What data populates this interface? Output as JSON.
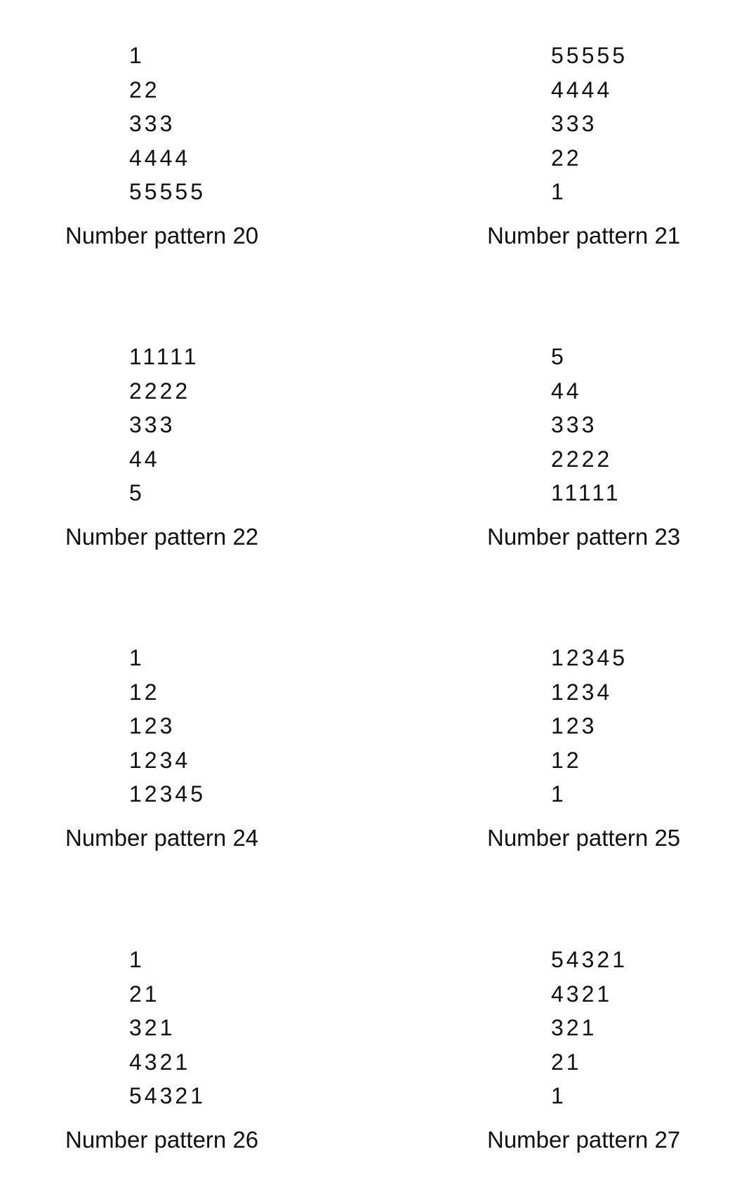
{
  "patterns": [
    {
      "rows": [
        "1",
        "22",
        "333",
        "4444",
        "55555"
      ],
      "caption": "Number pattern 20"
    },
    {
      "rows": [
        "55555",
        "4444",
        "333",
        "22",
        "1"
      ],
      "caption": "Number pattern 21"
    },
    {
      "rows": [
        "11111",
        "2222",
        "333",
        "44",
        "5"
      ],
      "caption": "Number pattern 22"
    },
    {
      "rows": [
        "5",
        "44",
        "333",
        "2222",
        "11111"
      ],
      "caption": "Number pattern 23"
    },
    {
      "rows": [
        "1",
        "12",
        "123",
        "1234",
        "12345"
      ],
      "caption": "Number pattern 24"
    },
    {
      "rows": [
        "12345",
        "1234",
        "123",
        "12",
        "1"
      ],
      "caption": "Number pattern 25"
    },
    {
      "rows": [
        "1",
        "21",
        "321",
        "4321",
        "54321"
      ],
      "caption": "Number pattern 26"
    },
    {
      "rows": [
        "54321",
        "4321",
        "321",
        "21",
        "1"
      ],
      "caption": "Number pattern 27"
    }
  ]
}
